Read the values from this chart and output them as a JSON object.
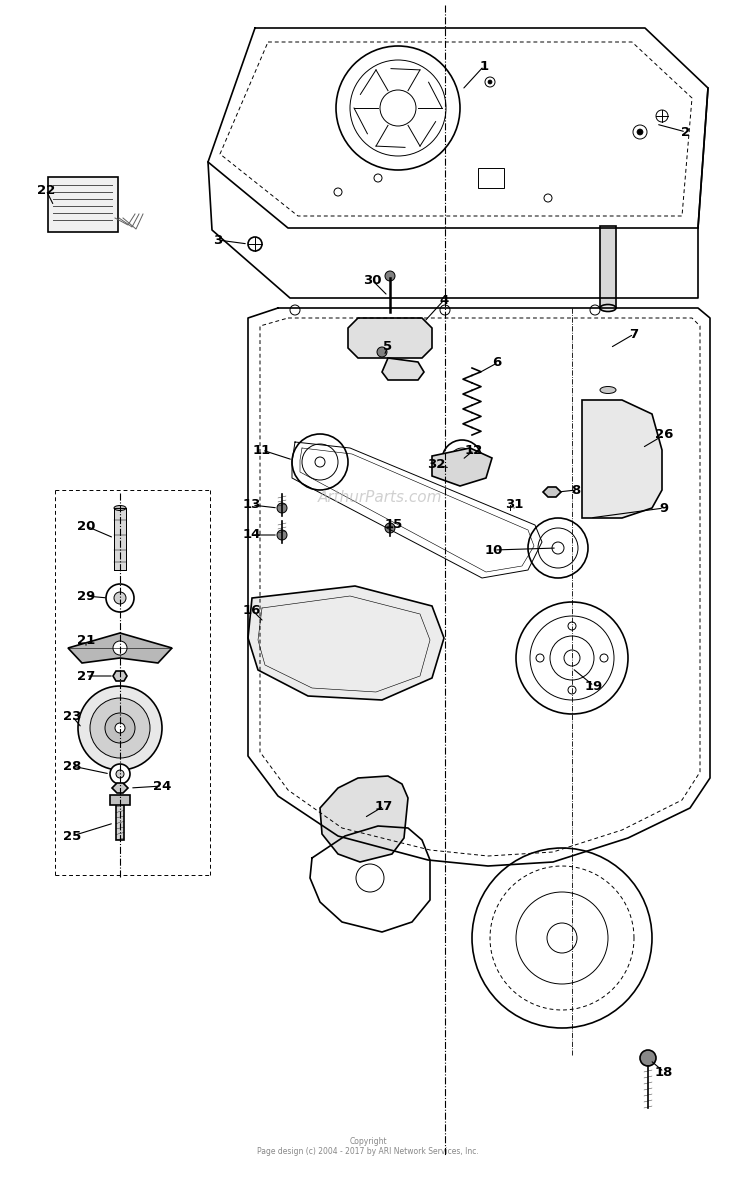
{
  "bg_color": "#ffffff",
  "line_color": "#000000",
  "label_color": "#000000",
  "copyright_line1": "Copyright",
  "copyright_line2": "Page design (c) 2004 - 2017 by ARI Network Services, Inc.",
  "watermark": "ArthurParts.com"
}
